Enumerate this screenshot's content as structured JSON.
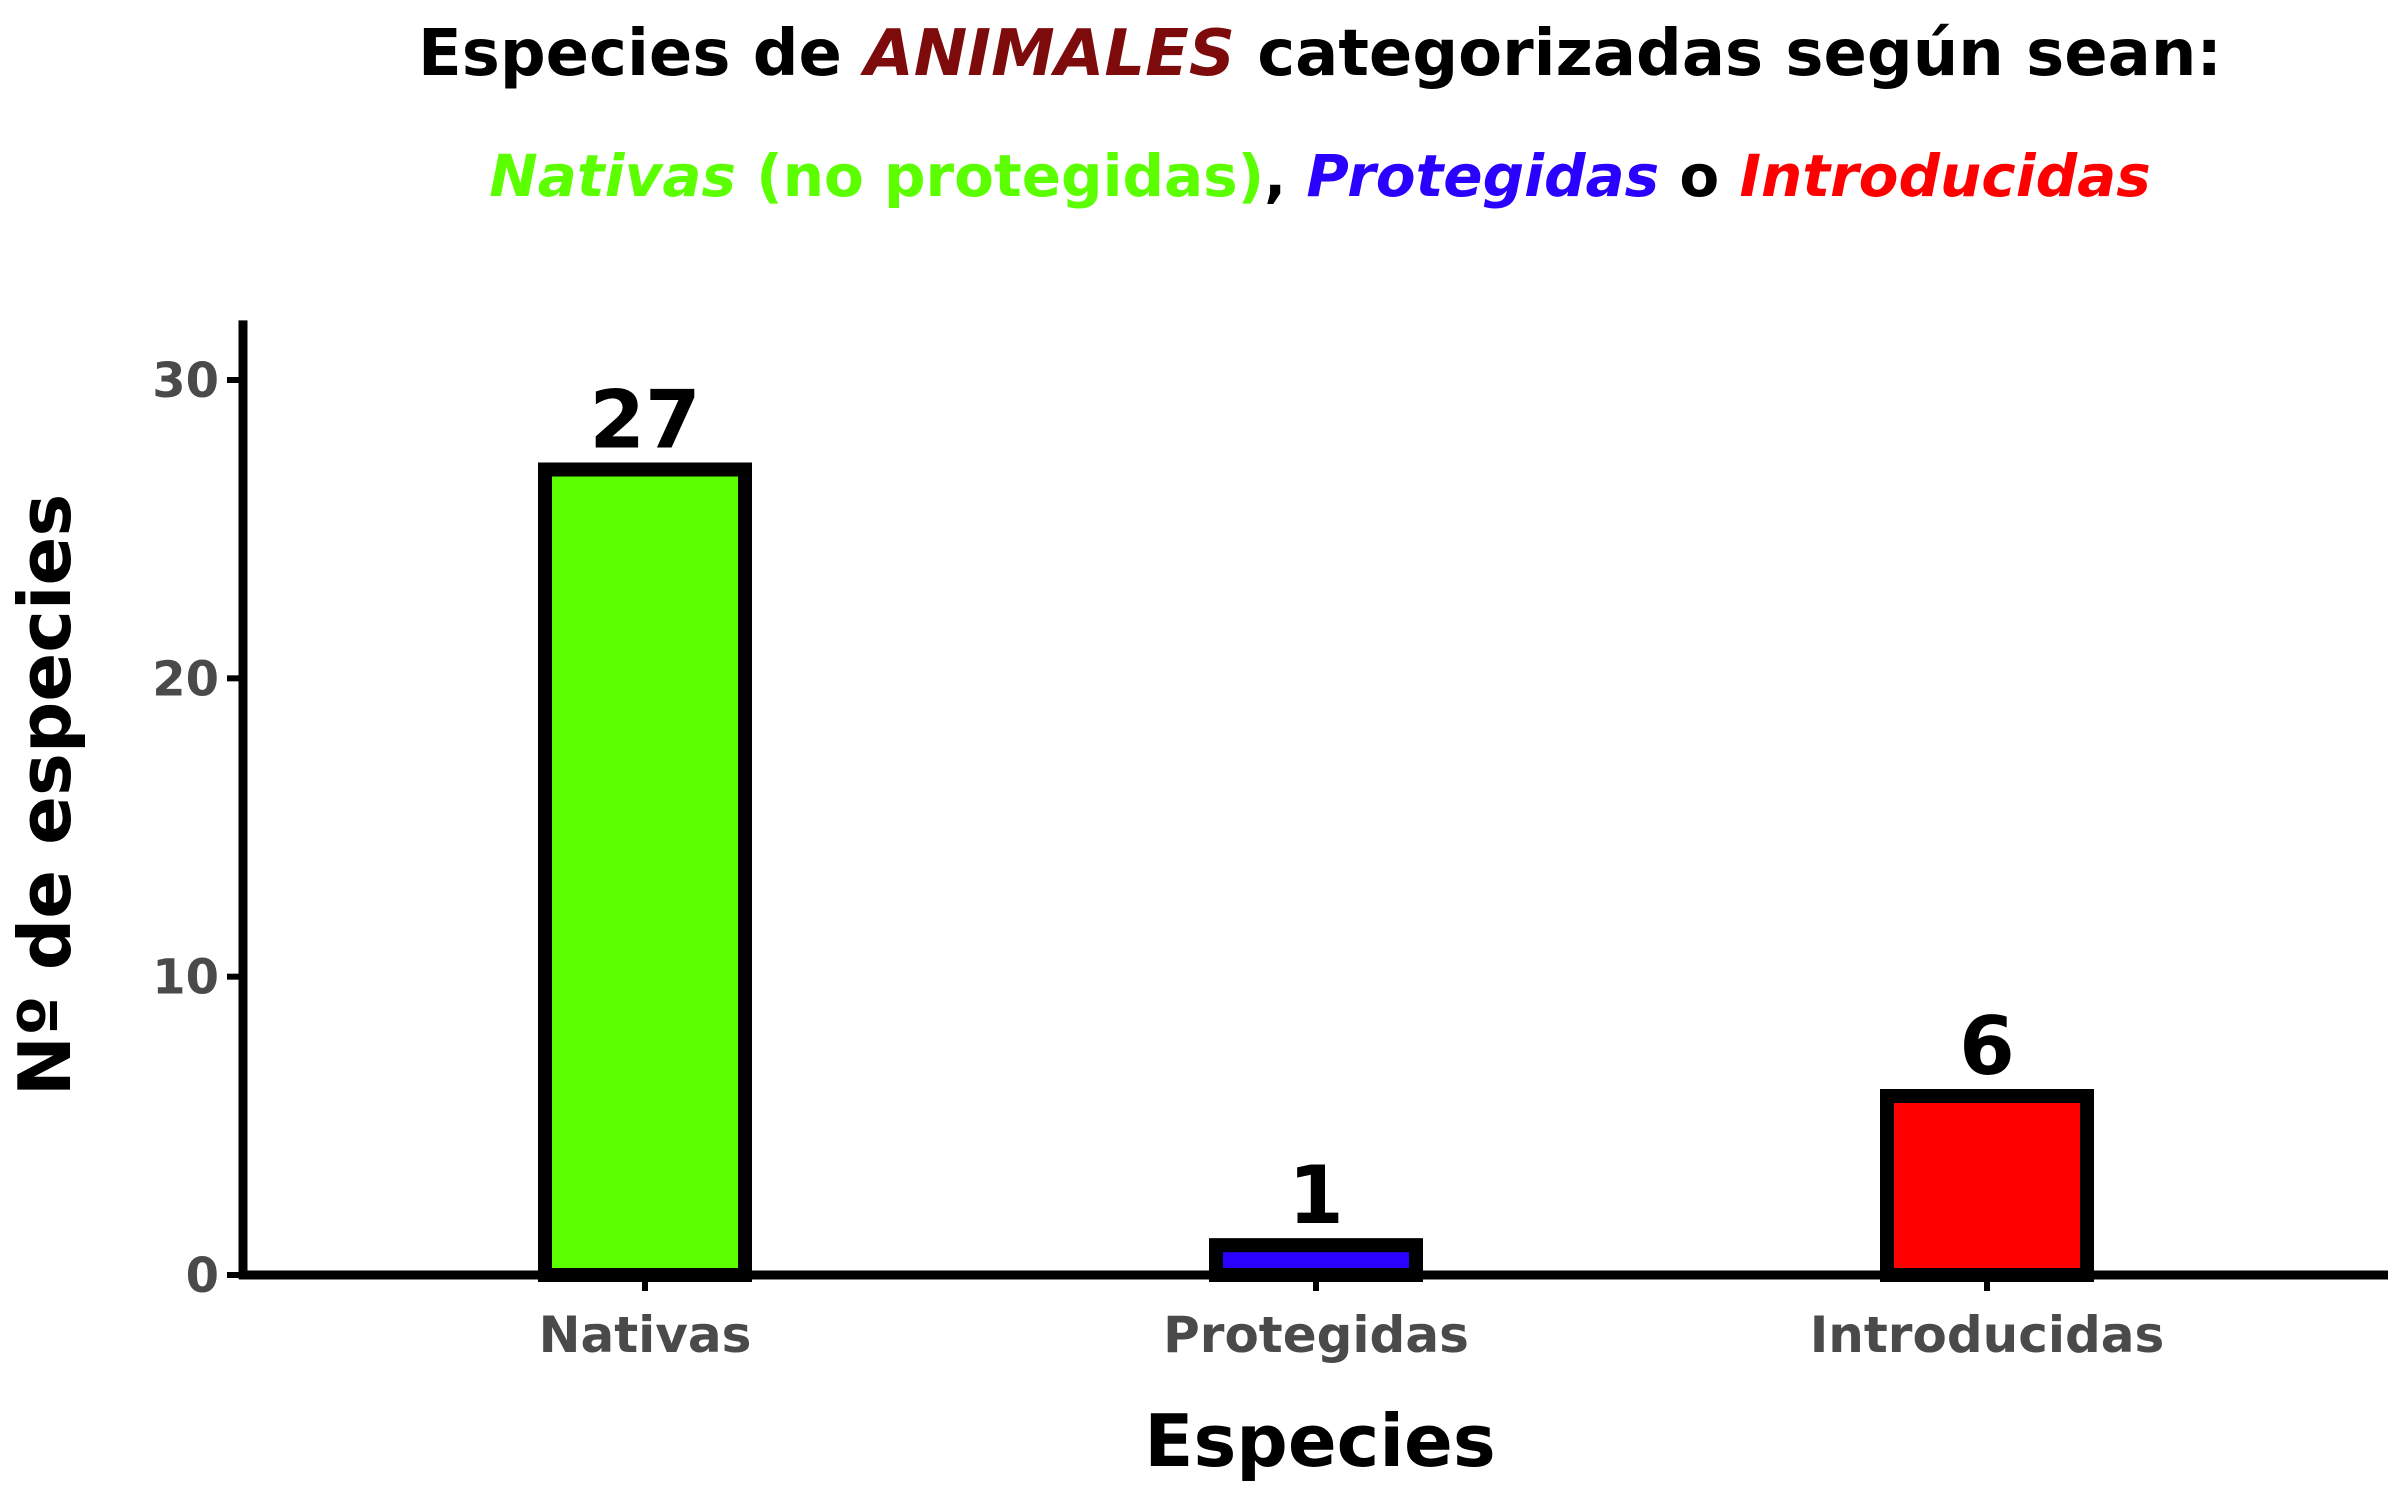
{
  "chart_data": {
    "type": "bar",
    "title": {
      "prefix": "Especies de ",
      "highlight": "ANIMALES",
      "suffix": " categorizadas según sean:",
      "highlight_color": "#7d0b0b"
    },
    "subtitle": {
      "part1": "Nativas",
      "part2": " (no protegidas)",
      "part3": ", ",
      "part4": "Protegidas",
      "part5": " o ",
      "part6": "Introducidas",
      "colors": {
        "nativas": "#5cff00",
        "protegidas": "#2a00ff",
        "introducidas": "#ff0000",
        "text": "#000000"
      }
    },
    "xlabel": "Especies",
    "ylabel": "Nº de especies",
    "categories": [
      "Nativas",
      "Protegidas",
      "Introducidas"
    ],
    "values": [
      27,
      1,
      6
    ],
    "bar_colors": [
      "#5cff00",
      "#2a00ff",
      "#ff0000"
    ],
    "bar_border_color": "#000000",
    "ylim": [
      0,
      32
    ],
    "yticks": [
      0,
      10,
      20,
      30
    ],
    "grid": false,
    "legend": "none"
  }
}
